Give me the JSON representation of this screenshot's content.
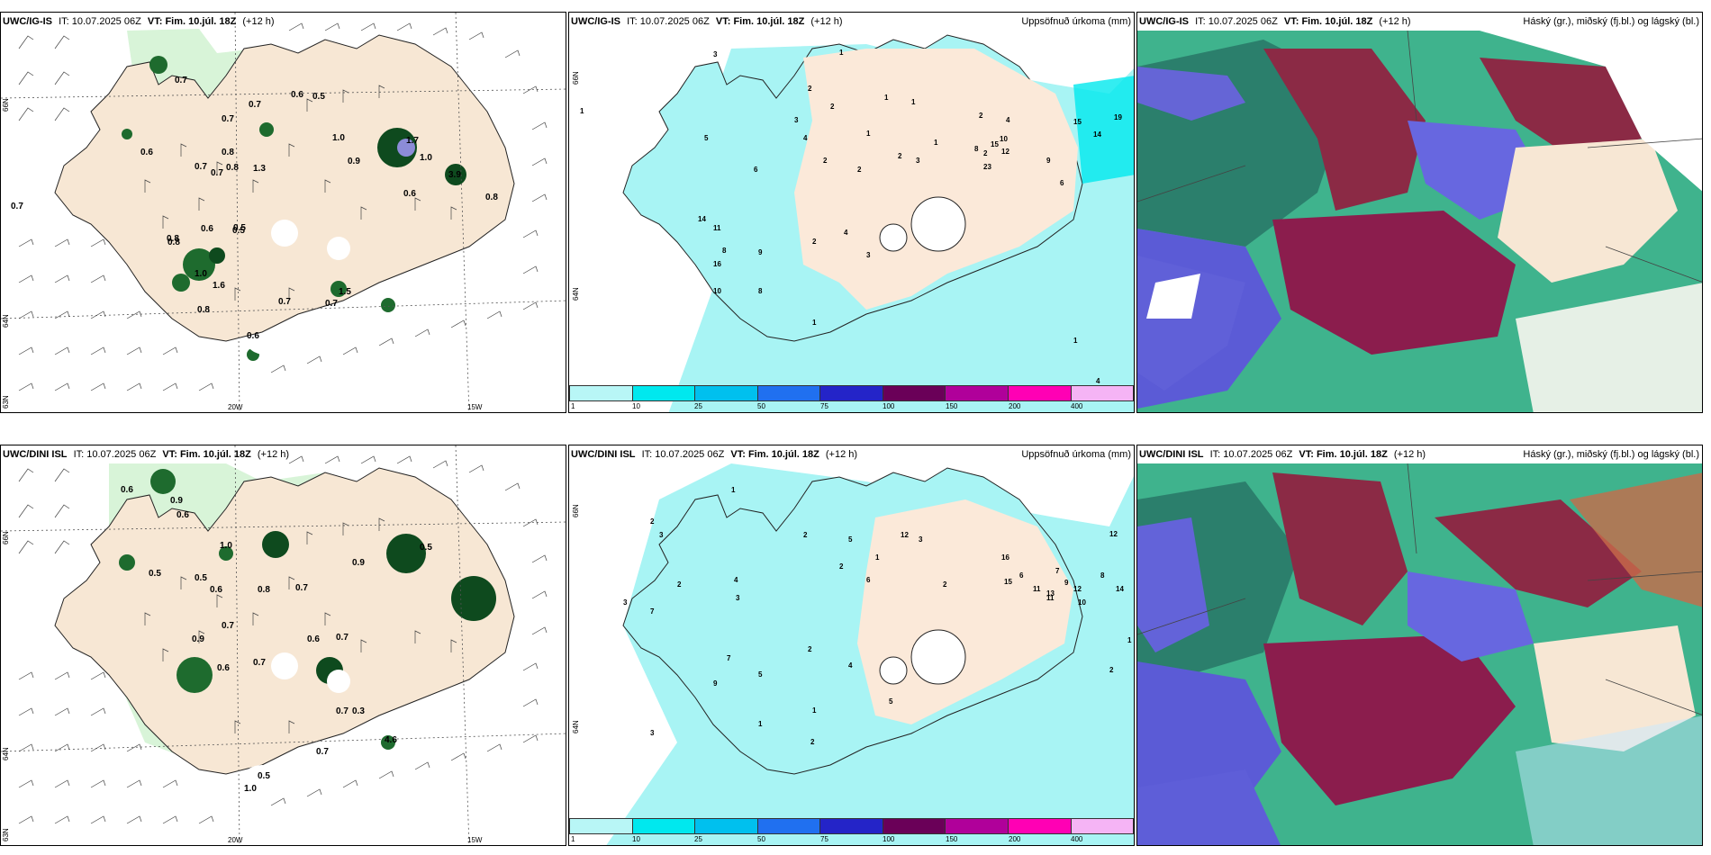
{
  "header": {
    "it_label": "IT:",
    "it_time": "10.07.2025 06Z",
    "vt_label": "VT:",
    "vt_time": "Fim. 10.júl. 18Z",
    "lead": "(+12 h)"
  },
  "rows": [
    {
      "model": "UWC/IG-IS"
    },
    {
      "model": "UWC/DINI ISL"
    }
  ],
  "titles": {
    "precip": "Uppsöfnuð úrkoma (mm)",
    "clouds": "Háský (gr.), miðský (fj.bl.) og lágský (bl.)"
  },
  "axis_labels": {
    "lat66": "66N",
    "lat64": "64N",
    "lat63": "63N",
    "lon20": "20W",
    "lon15": "15W"
  },
  "colorbar": {
    "ticks": [
      "1",
      "10",
      "25",
      "50",
      "75",
      "100",
      "150",
      "200",
      "400"
    ],
    "colors": [
      "#b8f6f6",
      "#00e8ee",
      "#00c0ee",
      "#2070f0",
      "#2424c8",
      "#6a0058",
      "#b0009a",
      "#ff00b4",
      "#f5b4f5"
    ]
  },
  "map_values": {
    "p1": [
      "0.7",
      "0.7",
      "0.6",
      "0.5",
      "0.7",
      "0.6",
      "0.8",
      "0.7",
      "0.7",
      "0.8",
      "1.3",
      "1.0",
      "0.9",
      "0.6",
      "0.7",
      "0.8",
      "0.6",
      "0.5",
      "0.8",
      "1.0",
      "1.6",
      "0.7",
      "0.7",
      "1.5",
      "0.8",
      "0.6",
      "0.5",
      "0.8",
      "3.9",
      "1.7",
      "1.0"
    ],
    "p2": [
      "1",
      "3",
      "1",
      "2",
      "3",
      "1",
      "2",
      "5",
      "6",
      "2",
      "4",
      "2",
      "1",
      "1",
      "2",
      "15",
      "10",
      "12",
      "9",
      "23",
      "2",
      "3",
      "8",
      "6",
      "14",
      "11",
      "8",
      "16",
      "9",
      "10",
      "8",
      "2",
      "4",
      "3",
      "1",
      "19",
      "15",
      "14",
      "1",
      "2",
      "4",
      "4",
      "1"
    ],
    "p4": [
      "0.6",
      "0.9",
      "0.6",
      "1.0",
      "0.5",
      "0.5",
      "0.8",
      "0.6",
      "0.7",
      "0.9",
      "0.5",
      "0.7",
      "0.6",
      "0.9",
      "0.7",
      "0.6",
      "0.7",
      "0.7",
      "0.3",
      "0.5",
      "1.0",
      "0.7",
      "4.6"
    ],
    "p5": [
      "2",
      "3",
      "1",
      "5",
      "2",
      "12",
      "3",
      "2",
      "1",
      "6",
      "2",
      "16",
      "12",
      "15",
      "11",
      "13",
      "9",
      "7",
      "6",
      "7",
      "2",
      "4",
      "3",
      "7",
      "9",
      "5",
      "2",
      "1",
      "4",
      "5",
      "3",
      "3",
      "1",
      "2",
      "8",
      "11",
      "12",
      "14",
      "10",
      "2",
      "1"
    ]
  }
}
